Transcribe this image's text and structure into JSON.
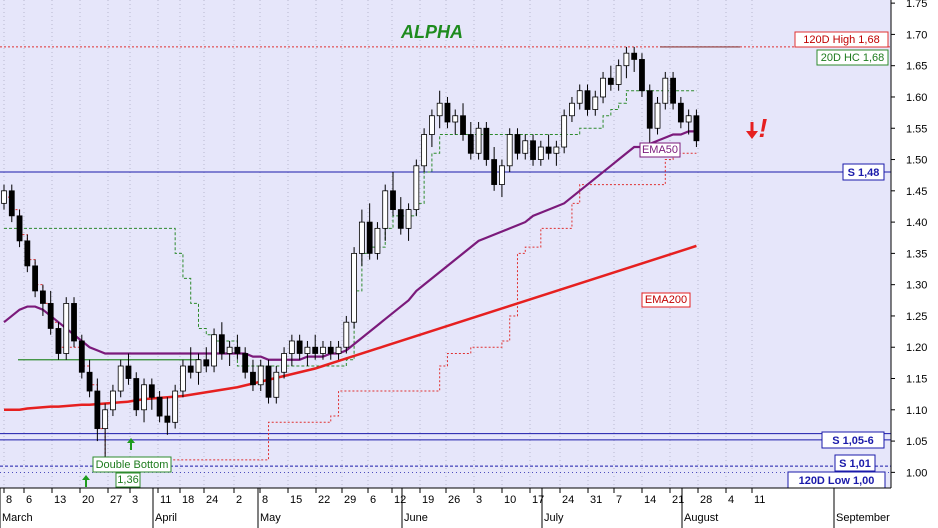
{
  "chart_data": {
    "type": "candlestick",
    "title": "ALPHA",
    "colors": {
      "background": "#E6E6FA",
      "title": "#1E8B1E",
      "ema50": "#7B1A7B",
      "ema200": "#E62020",
      "support": "#1A1AAA",
      "high_line": "#E03030",
      "hc_line": "#2E8B2E",
      "trail_red": "#E03030",
      "trail_green": "#2E8B2E",
      "arrow_red": "#E62020",
      "arrow_green": "#1E9B1E"
    },
    "y_axis": {
      "min": 0.975,
      "max": 1.755,
      "ticks": [
        "1.00",
        "1.05",
        "1.10",
        "1.15",
        "1.20",
        "1.25",
        "1.30",
        "1.35",
        "1.40",
        "1.45",
        "1.50",
        "1.55",
        "1.60",
        "1.65",
        "1.70",
        "1.75"
      ]
    },
    "x_axis": {
      "day_labels": [
        "8",
        "6",
        "13",
        "20",
        "27",
        "3",
        "11",
        "18",
        "24",
        "2",
        "8",
        "15",
        "22",
        "29",
        "6",
        "12",
        "19",
        "26",
        "3",
        "10",
        "17",
        "24",
        "31",
        "7",
        "14",
        "21",
        "28",
        "4",
        "11"
      ],
      "month_labels": [
        "March",
        "April",
        "May",
        "June",
        "July",
        "August",
        "September"
      ]
    },
    "last_price": "1.53000",
    "annotations": {
      "high_120d": "120D High 1,68",
      "hc_20d": "20D HC 1,68",
      "support_148": "S 1,48",
      "support_1056": "S 1,05-6",
      "support_101": "S 1,01",
      "low_120d": "120D Low 1,00",
      "double_bottom": "Double Bottom",
      "double_bottom_price": "1,36",
      "ema50": "EMA50",
      "ema200": "EMA200",
      "sell_mark": "!"
    },
    "levels": {
      "high_120d": 1.68,
      "support_148": 1.48,
      "support_105": 1.052,
      "support_106": 1.062,
      "support_101": 1.01,
      "low_120d": 1.0,
      "green_resistance": 1.18
    },
    "candles": [
      [
        1.43,
        1.46,
        1.42,
        1.45
      ],
      [
        1.45,
        1.46,
        1.4,
        1.41
      ],
      [
        1.41,
        1.42,
        1.36,
        1.37
      ],
      [
        1.37,
        1.38,
        1.32,
        1.33
      ],
      [
        1.33,
        1.34,
        1.28,
        1.29
      ],
      [
        1.29,
        1.3,
        1.25,
        1.27
      ],
      [
        1.27,
        1.29,
        1.22,
        1.23
      ],
      [
        1.23,
        1.24,
        1.18,
        1.19
      ],
      [
        1.19,
        1.28,
        1.18,
        1.27
      ],
      [
        1.27,
        1.28,
        1.2,
        1.21
      ],
      [
        1.21,
        1.22,
        1.15,
        1.16
      ],
      [
        1.16,
        1.18,
        1.12,
        1.13
      ],
      [
        1.13,
        1.15,
        1.05,
        1.07
      ],
      [
        1.07,
        1.11,
        1.0,
        1.1
      ],
      [
        1.1,
        1.14,
        1.09,
        1.13
      ],
      [
        1.13,
        1.18,
        1.12,
        1.17
      ],
      [
        1.17,
        1.19,
        1.14,
        1.15
      ],
      [
        1.15,
        1.16,
        1.09,
        1.1
      ],
      [
        1.1,
        1.15,
        1.08,
        1.14
      ],
      [
        1.14,
        1.15,
        1.1,
        1.12
      ],
      [
        1.12,
        1.13,
        1.08,
        1.09
      ],
      [
        1.09,
        1.12,
        1.06,
        1.08
      ],
      [
        1.08,
        1.14,
        1.07,
        1.13
      ],
      [
        1.13,
        1.18,
        1.12,
        1.17
      ],
      [
        1.17,
        1.2,
        1.15,
        1.16
      ],
      [
        1.16,
        1.19,
        1.14,
        1.18
      ],
      [
        1.18,
        1.2,
        1.16,
        1.17
      ],
      [
        1.17,
        1.23,
        1.16,
        1.22
      ],
      [
        1.22,
        1.24,
        1.18,
        1.19
      ],
      [
        1.19,
        1.21,
        1.17,
        1.2
      ],
      [
        1.2,
        1.22,
        1.18,
        1.19
      ],
      [
        1.19,
        1.2,
        1.15,
        1.16
      ],
      [
        1.16,
        1.18,
        1.13,
        1.14
      ],
      [
        1.14,
        1.18,
        1.13,
        1.17
      ],
      [
        1.17,
        1.18,
        1.11,
        1.12
      ],
      [
        1.12,
        1.17,
        1.11,
        1.16
      ],
      [
        1.16,
        1.2,
        1.15,
        1.19
      ],
      [
        1.19,
        1.22,
        1.17,
        1.21
      ],
      [
        1.21,
        1.22,
        1.18,
        1.19
      ],
      [
        1.19,
        1.21,
        1.17,
        1.2
      ],
      [
        1.2,
        1.22,
        1.18,
        1.19
      ],
      [
        1.19,
        1.21,
        1.18,
        1.2
      ],
      [
        1.2,
        1.21,
        1.18,
        1.19
      ],
      [
        1.19,
        1.21,
        1.18,
        1.2
      ],
      [
        1.2,
        1.25,
        1.19,
        1.24
      ],
      [
        1.24,
        1.36,
        1.23,
        1.35
      ],
      [
        1.35,
        1.42,
        1.33,
        1.4
      ],
      [
        1.4,
        1.43,
        1.34,
        1.35
      ],
      [
        1.35,
        1.4,
        1.34,
        1.39
      ],
      [
        1.39,
        1.46,
        1.37,
        1.45
      ],
      [
        1.45,
        1.48,
        1.41,
        1.42
      ],
      [
        1.42,
        1.44,
        1.38,
        1.39
      ],
      [
        1.39,
        1.43,
        1.37,
        1.42
      ],
      [
        1.42,
        1.5,
        1.41,
        1.49
      ],
      [
        1.49,
        1.55,
        1.48,
        1.54
      ],
      [
        1.54,
        1.58,
        1.52,
        1.57
      ],
      [
        1.57,
        1.61,
        1.55,
        1.59
      ],
      [
        1.59,
        1.6,
        1.55,
        1.56
      ],
      [
        1.56,
        1.58,
        1.54,
        1.57
      ],
      [
        1.57,
        1.59,
        1.53,
        1.54
      ],
      [
        1.54,
        1.56,
        1.5,
        1.51
      ],
      [
        1.51,
        1.56,
        1.5,
        1.55
      ],
      [
        1.55,
        1.56,
        1.49,
        1.5
      ],
      [
        1.5,
        1.52,
        1.45,
        1.46
      ],
      [
        1.46,
        1.5,
        1.44,
        1.49
      ],
      [
        1.49,
        1.55,
        1.48,
        1.54
      ],
      [
        1.54,
        1.55,
        1.5,
        1.51
      ],
      [
        1.51,
        1.54,
        1.5,
        1.53
      ],
      [
        1.53,
        1.54,
        1.49,
        1.5
      ],
      [
        1.5,
        1.53,
        1.49,
        1.52
      ],
      [
        1.52,
        1.54,
        1.5,
        1.51
      ],
      [
        1.51,
        1.53,
        1.49,
        1.52
      ],
      [
        1.52,
        1.58,
        1.51,
        1.57
      ],
      [
        1.57,
        1.6,
        1.56,
        1.59
      ],
      [
        1.59,
        1.62,
        1.58,
        1.61
      ],
      [
        1.61,
        1.62,
        1.57,
        1.58
      ],
      [
        1.58,
        1.61,
        1.57,
        1.6
      ],
      [
        1.6,
        1.64,
        1.59,
        1.63
      ],
      [
        1.63,
        1.65,
        1.61,
        1.62
      ],
      [
        1.62,
        1.66,
        1.61,
        1.65
      ],
      [
        1.65,
        1.68,
        1.63,
        1.67
      ],
      [
        1.67,
        1.68,
        1.64,
        1.66
      ],
      [
        1.66,
        1.67,
        1.6,
        1.61
      ],
      [
        1.61,
        1.62,
        1.52,
        1.55
      ],
      [
        1.55,
        1.6,
        1.54,
        1.59
      ],
      [
        1.59,
        1.64,
        1.58,
        1.63
      ],
      [
        1.63,
        1.64,
        1.58,
        1.59
      ],
      [
        1.59,
        1.6,
        1.55,
        1.56
      ],
      [
        1.56,
        1.58,
        1.54,
        1.57
      ],
      [
        1.57,
        1.58,
        1.52,
        1.53
      ]
    ],
    "ema50": [
      1.24,
      1.25,
      1.26,
      1.265,
      1.265,
      1.26,
      1.25,
      1.24,
      1.23,
      1.22,
      1.21,
      1.2,
      1.195,
      1.19,
      1.19,
      1.19,
      1.19,
      1.19,
      1.19,
      1.19,
      1.19,
      1.19,
      1.19,
      1.19,
      1.19,
      1.19,
      1.19,
      1.19,
      1.19,
      1.19,
      1.19,
      1.19,
      1.185,
      1.185,
      1.18,
      1.18,
      1.18,
      1.18,
      1.18,
      1.185,
      1.185,
      1.185,
      1.19,
      1.19,
      1.195,
      1.205,
      1.215,
      1.225,
      1.235,
      1.245,
      1.255,
      1.265,
      1.275,
      1.29,
      1.3,
      1.31,
      1.32,
      1.33,
      1.34,
      1.35,
      1.36,
      1.37,
      1.375,
      1.38,
      1.385,
      1.39,
      1.395,
      1.4,
      1.41,
      1.415,
      1.42,
      1.425,
      1.43,
      1.44,
      1.45,
      1.46,
      1.47,
      1.48,
      1.49,
      1.5,
      1.51,
      1.52,
      1.52,
      1.525,
      1.53,
      1.535,
      1.54,
      1.54,
      1.545,
      1.545
    ],
    "ema200": [
      1.1,
      1.1,
      1.1,
      1.102,
      1.103,
      1.104,
      1.105,
      1.105,
      1.106,
      1.107,
      1.108,
      1.108,
      1.109,
      1.11,
      1.111,
      1.112,
      1.113,
      1.115,
      1.117,
      1.118,
      1.119,
      1.12,
      1.121,
      1.122,
      1.124,
      1.126,
      1.128,
      1.13,
      1.132,
      1.134,
      1.136,
      1.139,
      1.142,
      1.145,
      1.148,
      1.151,
      1.154,
      1.157,
      1.16,
      1.163,
      1.166,
      1.17,
      1.174,
      1.178,
      1.182,
      1.186,
      1.19,
      1.194,
      1.198,
      1.202,
      1.206,
      1.21,
      1.214,
      1.218,
      1.222,
      1.226,
      1.23,
      1.234,
      1.238,
      1.242,
      1.246,
      1.25,
      1.254,
      1.258,
      1.262,
      1.266,
      1.27,
      1.274,
      1.278,
      1.282,
      1.286,
      1.29,
      1.294,
      1.298,
      1.302,
      1.306,
      1.31,
      1.314,
      1.318,
      1.322,
      1.326,
      1.33,
      1.334,
      1.338,
      1.342,
      1.346,
      1.35,
      1.354,
      1.358,
      1.362
    ]
  }
}
